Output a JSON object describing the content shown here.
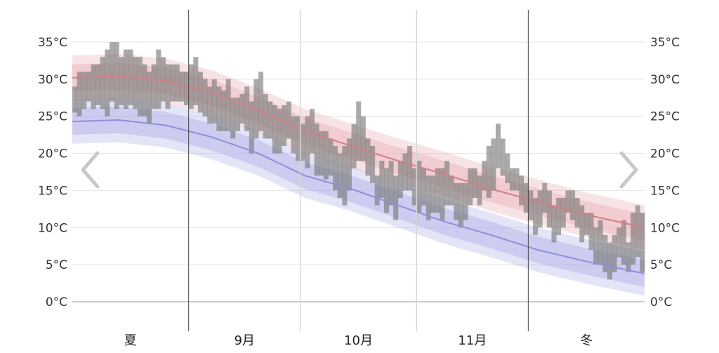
{
  "colors": {
    "high_band": "#e7a7ad",
    "low_band": "#a7a7e6",
    "high_line": "#d07f86",
    "low_line": "#8f8fd8",
    "observed": "#777777",
    "grid": "#e3e3e3",
    "axis": "#9a9a9a",
    "nav_arrow": "#c8c8c8"
  },
  "nav": {
    "prev_icon": "chevron-left-icon",
    "next_icon": "chevron-right-icon"
  },
  "chart_data": {
    "type": "area",
    "title": "",
    "xlabel": "",
    "ylabel": "",
    "x_range_days": [
      0,
      123
    ],
    "ylim": [
      0,
      35
    ],
    "grid": true,
    "y_ticks": [
      0,
      5,
      10,
      15,
      20,
      25,
      30,
      35
    ],
    "y_tick_labels": [
      "0°C",
      "5°C",
      "10°C",
      "15°C",
      "20°C",
      "25°C",
      "30°C",
      "35°C"
    ],
    "period_labels": [
      "夏",
      "9月",
      "10月",
      "11月",
      "冬"
    ],
    "period_dividers": [
      25,
      49,
      74,
      98
    ],
    "season_dividers": [
      25,
      98
    ],
    "average_high": {
      "x": [
        0,
        10,
        20,
        30,
        40,
        50,
        60,
        70,
        80,
        90,
        100,
        110,
        123
      ],
      "values": [
        30.2,
        30.4,
        29.8,
        28.2,
        25.8,
        23.0,
        21.0,
        19.0,
        17.2,
        15.2,
        13.5,
        11.8,
        10.0
      ]
    },
    "average_high_bands": {
      "inner_offset": 1.8,
      "outer_offset": 3.0
    },
    "average_low": {
      "x": [
        0,
        10,
        20,
        30,
        40,
        50,
        60,
        70,
        80,
        90,
        100,
        110,
        123
      ],
      "values": [
        24.3,
        24.5,
        23.8,
        22.2,
        20.0,
        17.0,
        15.2,
        13.0,
        10.8,
        9.0,
        7.0,
        5.5,
        3.8
      ]
    },
    "average_low_bands": {
      "inner_offset": 1.8,
      "outer_offset": 3.0
    },
    "observed_days": [
      [
        25.5,
        29
      ],
      [
        25,
        31
      ],
      [
        26,
        31
      ],
      [
        27,
        31
      ],
      [
        26,
        32
      ],
      [
        26.5,
        32
      ],
      [
        26,
        33
      ],
      [
        25,
        34
      ],
      [
        27,
        35
      ],
      [
        26,
        35
      ],
      [
        26.5,
        33
      ],
      [
        26,
        34
      ],
      [
        26.5,
        34
      ],
      [
        26,
        33
      ],
      [
        25,
        33
      ],
      [
        25,
        32
      ],
      [
        24,
        31
      ],
      [
        26,
        32
      ],
      [
        26,
        34
      ],
      [
        27,
        33
      ],
      [
        26,
        32
      ],
      [
        27,
        32
      ],
      [
        27,
        32
      ],
      [
        27,
        31
      ],
      [
        26.5,
        31
      ],
      [
        26,
        32
      ],
      [
        26.5,
        33
      ],
      [
        25.5,
        31
      ],
      [
        25,
        30
      ],
      [
        24,
        29
      ],
      [
        24,
        30
      ],
      [
        23,
        29
      ],
      [
        23,
        28.5
      ],
      [
        23,
        30
      ],
      [
        22,
        27.5
      ],
      [
        23,
        27.5
      ],
      [
        24,
        28
      ],
      [
        23,
        29
      ],
      [
        20,
        27
      ],
      [
        22,
        30
      ],
      [
        23,
        31
      ],
      [
        22,
        28
      ],
      [
        22,
        27
      ],
      [
        20,
        26.5
      ],
      [
        20,
        26
      ],
      [
        21,
        26.5
      ],
      [
        22,
        27
      ],
      [
        20,
        25
      ],
      [
        19,
        25
      ],
      [
        19,
        24
      ],
      [
        18,
        25
      ],
      [
        20,
        26
      ],
      [
        17,
        24
      ],
      [
        17,
        23
      ],
      [
        16.5,
        23
      ],
      [
        17,
        22
      ],
      [
        15,
        21
      ],
      [
        14,
        20
      ],
      [
        13,
        21
      ],
      [
        15,
        22
      ],
      [
        18,
        24
      ],
      [
        19,
        27
      ],
      [
        19,
        25
      ],
      [
        17,
        22
      ],
      [
        16,
        21
      ],
      [
        13,
        17
      ],
      [
        14,
        19
      ],
      [
        12,
        18
      ],
      [
        13,
        19
      ],
      [
        11,
        17
      ],
      [
        14,
        19
      ],
      [
        15,
        20
      ],
      [
        15,
        21
      ],
      [
        13,
        18
      ],
      [
        12,
        19
      ],
      [
        13,
        18
      ],
      [
        11,
        17
      ],
      [
        12,
        17
      ],
      [
        12,
        18
      ],
      [
        11,
        18
      ],
      [
        13,
        19
      ],
      [
        13,
        17
      ],
      [
        11,
        16
      ],
      [
        10,
        16
      ],
      [
        11,
        16
      ],
      [
        13,
        18
      ],
      [
        14,
        18
      ],
      [
        13,
        17
      ],
      [
        15,
        19
      ],
      [
        14,
        21
      ],
      [
        15,
        22
      ],
      [
        18,
        24
      ],
      [
        17,
        22
      ],
      [
        16,
        20
      ],
      [
        15,
        18
      ],
      [
        15,
        18
      ],
      [
        13,
        17
      ],
      [
        12,
        16
      ],
      [
        11,
        15
      ],
      [
        9,
        14
      ],
      [
        10,
        15
      ],
      [
        12,
        16
      ],
      [
        10,
        15
      ],
      [
        8,
        13
      ],
      [
        9,
        14
      ],
      [
        10,
        14
      ],
      [
        12,
        15
      ],
      [
        11,
        15
      ],
      [
        10,
        14
      ],
      [
        8,
        13
      ],
      [
        9,
        12
      ],
      [
        7,
        12
      ],
      [
        5,
        10
      ],
      [
        5,
        11
      ],
      [
        4,
        9
      ],
      [
        3,
        8
      ],
      [
        4,
        9
      ],
      [
        6,
        10
      ],
      [
        5,
        11
      ],
      [
        4,
        8
      ],
      [
        5,
        12
      ],
      [
        6,
        13
      ],
      [
        4,
        12
      ]
    ]
  }
}
